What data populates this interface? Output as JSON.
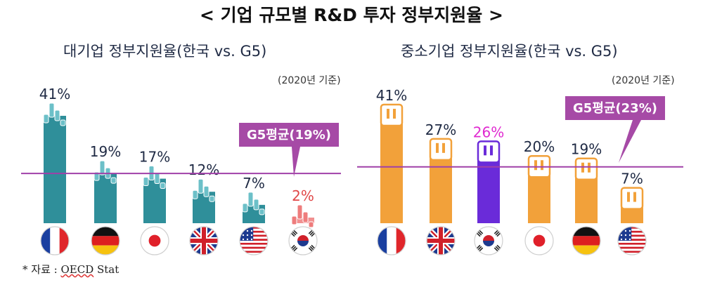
{
  "title": "< 기업 규모별 R&D 투자 정부지원율 >",
  "source": {
    "prefix": "* 자료 : ",
    "name": "OECD",
    "suffix": " Stat"
  },
  "colors": {
    "teal": "#2f8f9a",
    "teal_light": "#6cc0c8",
    "orange": "#f2a13a",
    "orange_light": "#f7c47a",
    "korea_pink": "#ee7c7c",
    "korea_purple": "#6a2bd9",
    "g5_line": "#a040a8",
    "g5_box": "#a64aa6",
    "label_magenta": "#e02ad0"
  },
  "chart_data": [
    {
      "type": "bar",
      "title": "대기업 정부지원율(한국 vs. G5)",
      "note": "(2020년 기준)",
      "categories": [
        "France",
        "Germany",
        "Japan",
        "United Kingdom",
        "United States",
        "Korea"
      ],
      "flags": [
        "france-flag-icon",
        "germany-flag-icon",
        "japan-flag-icon",
        "uk-flag-icon",
        "usa-flag-icon",
        "korea-flag-icon"
      ],
      "values": [
        41,
        19,
        17,
        12,
        7,
        2
      ],
      "labels": [
        "41%",
        "19%",
        "17%",
        "12%",
        "7%",
        "2%"
      ],
      "highlight_index": 5,
      "reference": {
        "label": "G5평균(19%)",
        "value": 19
      },
      "ylim": [
        0,
        45
      ]
    },
    {
      "type": "bar",
      "title": "중소기업 정부지원율(한국 vs. G5)",
      "note": "(2020년 기준)",
      "categories": [
        "France",
        "United Kingdom",
        "Korea",
        "Japan",
        "Germany",
        "United States"
      ],
      "flags": [
        "france-flag-icon",
        "uk-flag-icon",
        "korea-flag-icon",
        "japan-flag-icon",
        "germany-flag-icon",
        "usa-flag-icon"
      ],
      "values": [
        41,
        27,
        26,
        20,
        19,
        7
      ],
      "labels": [
        "41%",
        "27%",
        "26%",
        "20%",
        "19%",
        "7%"
      ],
      "highlight_index": 2,
      "reference": {
        "label": "G5평균(23%)",
        "value": 23
      },
      "ylim": [
        0,
        45
      ]
    }
  ]
}
